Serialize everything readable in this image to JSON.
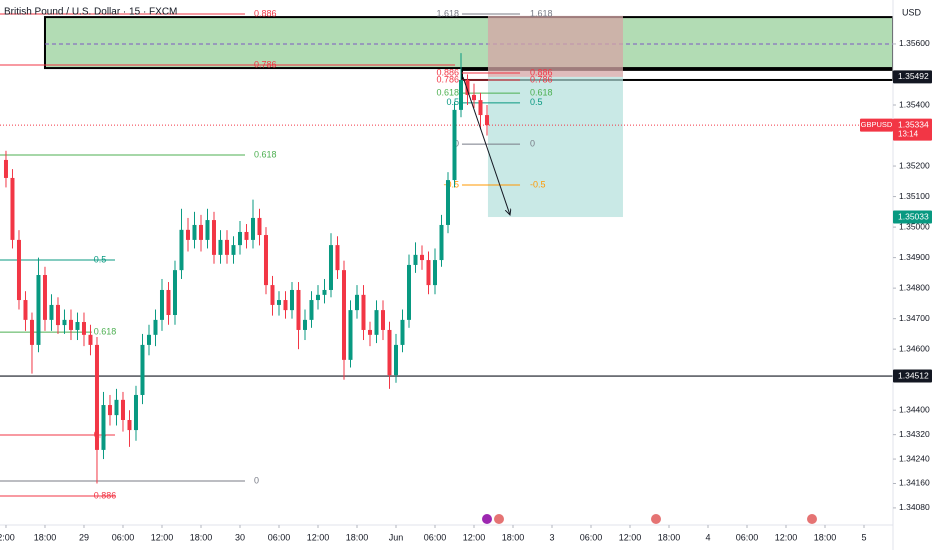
{
  "chart_data": {
    "type": "candlestick",
    "title": "British Pound / U.S. Dollar · 15 · FXCM",
    "currency": "USD",
    "up_color": "#089981",
    "down_color": "#f23645",
    "x": [
      12,
      13,
      14,
      15,
      16,
      17,
      18,
      19,
      20,
      21,
      22,
      23,
      24,
      25,
      26,
      27,
      28,
      29,
      30,
      31,
      32,
      33,
      34,
      35,
      36,
      37,
      38,
      39,
      40,
      41,
      42,
      43,
      44,
      45,
      46,
      47,
      48,
      49,
      50,
      51,
      52,
      53,
      54,
      55,
      56,
      57,
      58,
      59,
      60,
      61,
      62,
      63,
      64,
      65,
      66,
      67,
      68,
      69,
      70,
      71,
      72,
      73,
      74,
      75,
      76,
      77,
      78,
      79,
      80,
      81,
      82,
      83,
      84,
      85,
      86
    ],
    "open": [
      1.3522,
      1.35161,
      1.34958,
      1.34761,
      1.34696,
      1.34614,
      1.34843,
      1.34696,
      1.34745,
      1.34679,
      1.34696,
      1.34663,
      1.34689,
      1.34647,
      1.34614,
      1.3427,
      1.34417,
      1.34384,
      1.34434,
      1.34368,
      1.34335,
      1.3445,
      1.34614,
      1.34647,
      1.34696,
      1.34794,
      1.34712,
      1.34859,
      1.34991,
      1.34958,
      1.35007,
      1.34958,
      1.35023,
      1.34909,
      1.34958,
      1.34909,
      1.34941,
      1.34984,
      1.34958,
      1.3503,
      1.34974,
      1.3481,
      1.34745,
      1.34761,
      1.34728,
      1.34794,
      1.34663,
      1.34696,
      1.34761,
      1.34778,
      1.34794,
      1.34941,
      1.34859,
      1.34565,
      1.34728,
      1.34778,
      1.34663,
      1.34647,
      1.34728,
      1.34663,
      1.34515,
      1.34614,
      1.34696,
      1.34876,
      1.34909,
      1.34892,
      1.3481,
      1.34892,
      1.35007,
      1.35154,
      1.35384,
      1.35482,
      1.35433,
      1.35416,
      1.35367
    ],
    "high": [
      1.3525,
      1.3519,
      1.3499,
      1.3479,
      1.3472,
      1.349,
      1.3487,
      1.3478,
      1.3477,
      1.3473,
      1.3473,
      1.3472,
      1.3472,
      1.3468,
      1.3464,
      1.3446,
      1.3445,
      1.3447,
      1.3446,
      1.344,
      1.3448,
      1.3465,
      1.3468,
      1.3473,
      1.3483,
      1.3482,
      1.3489,
      1.3506,
      1.3503,
      1.3505,
      1.3504,
      1.3506,
      1.3505,
      1.3499,
      1.3499,
      1.3497,
      1.3502,
      1.3501,
      1.3509,
      1.3506,
      1.35,
      1.3484,
      1.3479,
      1.3479,
      1.3482,
      1.3482,
      1.3473,
      1.3479,
      1.3481,
      1.3483,
      1.3498,
      1.3497,
      1.3489,
      1.3476,
      1.3481,
      1.3481,
      1.3469,
      1.3476,
      1.3476,
      1.3469,
      1.3465,
      1.3473,
      1.3491,
      1.3495,
      1.3494,
      1.3492,
      1.3493,
      1.3504,
      1.3518,
      1.3541,
      1.3557,
      1.355,
      1.3547,
      1.3544,
      1.354
    ],
    "low": [
      1.3513,
      1.3493,
      1.3473,
      1.3466,
      1.3452,
      1.3459,
      1.3466,
      1.3466,
      1.3465,
      1.3465,
      1.3463,
      1.3463,
      1.3461,
      1.3458,
      1.3416,
      1.3424,
      1.3435,
      1.3435,
      1.3433,
      1.3428,
      1.343,
      1.3442,
      1.3458,
      1.3461,
      1.3466,
      1.3468,
      1.3468,
      1.3483,
      1.3492,
      1.3493,
      1.3492,
      1.3493,
      1.3488,
      1.3488,
      1.3488,
      1.3488,
      1.3491,
      1.3493,
      1.3493,
      1.3494,
      1.3478,
      1.3471,
      1.3471,
      1.347,
      1.347,
      1.346,
      1.3463,
      1.3467,
      1.3473,
      1.3475,
      1.3477,
      1.3483,
      1.345,
      1.3454,
      1.347,
      1.3463,
      1.3461,
      1.3462,
      1.3463,
      1.3447,
      1.3449,
      1.3459,
      1.3467,
      1.3485,
      1.3486,
      1.3478,
      1.3478,
      1.3487,
      1.3498,
      1.3513,
      1.3536,
      1.354,
      1.3539,
      1.3532,
      1.353
    ],
    "close": [
      1.35161,
      1.34958,
      1.34761,
      1.34696,
      1.34614,
      1.34843,
      1.34696,
      1.34745,
      1.34679,
      1.34696,
      1.34663,
      1.34689,
      1.34647,
      1.34614,
      1.3427,
      1.34417,
      1.34384,
      1.34434,
      1.34368,
      1.34335,
      1.3445,
      1.34614,
      1.34647,
      1.34696,
      1.34794,
      1.34712,
      1.34859,
      1.34991,
      1.34958,
      1.35007,
      1.34958,
      1.35023,
      1.34909,
      1.34958,
      1.34909,
      1.34941,
      1.34984,
      1.34958,
      1.3503,
      1.34974,
      1.3481,
      1.34745,
      1.34761,
      1.34728,
      1.34794,
      1.34663,
      1.34696,
      1.34761,
      1.34778,
      1.34794,
      1.34941,
      1.34859,
      1.34565,
      1.34728,
      1.34778,
      1.34663,
      1.34647,
      1.34728,
      1.34663,
      1.34515,
      1.34614,
      1.34696,
      1.34876,
      1.34909,
      1.34892,
      1.3481,
      1.34892,
      1.35007,
      1.35154,
      1.35384,
      1.35482,
      1.35433,
      1.35416,
      1.35367,
      1.35334
    ],
    "xlim": [
      11.08,
      148.46
    ],
    "xticks": [
      {
        "value": 12,
        "label": "2:00"
      },
      {
        "value": 18,
        "label": "18:00"
      },
      {
        "value": 24,
        "label": "29"
      },
      {
        "value": 30,
        "label": "06:00"
      },
      {
        "value": 36,
        "label": "12:00"
      },
      {
        "value": 42,
        "label": "18:00"
      },
      {
        "value": 48,
        "label": "30"
      },
      {
        "value": 54,
        "label": "06:00"
      },
      {
        "value": 60,
        "label": "12:00"
      },
      {
        "value": 66,
        "label": "18:00"
      },
      {
        "value": 72,
        "label": "Jun"
      },
      {
        "value": 78,
        "label": "06:00"
      },
      {
        "value": 84,
        "label": "12:00"
      },
      {
        "value": 90,
        "label": "18:00"
      },
      {
        "value": 96,
        "label": "3"
      },
      {
        "value": 102,
        "label": "06:00"
      },
      {
        "value": 108,
        "label": "12:00"
      },
      {
        "value": 114,
        "label": "18:00"
      },
      {
        "value": 120,
        "label": "4"
      },
      {
        "value": 126,
        "label": "06:00"
      },
      {
        "value": 132,
        "label": "12:00"
      },
      {
        "value": 138,
        "label": "18:00"
      },
      {
        "value": 144,
        "label": "5"
      }
    ],
    "ylim": [
      1.34024,
      1.35744
    ],
    "yticks": [
      {
        "value": 1.356,
        "label": "1.35600"
      },
      {
        "value": 1.354,
        "label": "1.35400"
      },
      {
        "value": 1.352,
        "label": "1.35200"
      },
      {
        "value": 1.351,
        "label": "1.35100"
      },
      {
        "value": 1.35,
        "label": "1.35000"
      },
      {
        "value": 1.349,
        "label": "1.34900"
      },
      {
        "value": 1.348,
        "label": "1.34800"
      },
      {
        "value": 1.347,
        "label": "1.34700"
      },
      {
        "value": 1.346,
        "label": "1.34600"
      },
      {
        "value": 1.344,
        "label": "1.34400"
      },
      {
        "value": 1.3432,
        "label": "1.34320"
      },
      {
        "value": 1.3424,
        "label": "1.34240"
      },
      {
        "value": 1.3416,
        "label": "1.34160"
      },
      {
        "value": 1.3408,
        "label": "1.34080"
      }
    ],
    "zones": [
      {
        "top": 1.35688,
        "bottom": 1.35521,
        "from": 18,
        "to": 148.46,
        "fill": "#a5d6a7",
        "midline": 1.356
      },
      {
        "top": 1.35515,
        "bottom": 1.35482,
        "from": 82.15,
        "to": 148.46,
        "fill": "#ffffff"
      }
    ],
    "position": {
      "from": 86.15,
      "to": 106.92,
      "entry": 1.35492,
      "stop": 1.35692,
      "target": 1.35033
    },
    "arrow": {
      "x0": 82.3,
      "y0": 1.35492,
      "x1": 89.54,
      "y1": 1.3504
    },
    "fib_sets": [
      {
        "from": 11.08,
        "levels": [
          {
            "price": 1.35698,
            "label": "0.886",
            "color": "#f23645",
            "to": 48.77,
            "label_at": 49.85
          },
          {
            "price": 1.35531,
            "label": "0.786",
            "color": "#f23645",
            "to": 81.08,
            "label_at": 49.85
          },
          {
            "price": 1.35236,
            "label": "0.618",
            "color": "#4caf50",
            "to": 48.77,
            "label_at": 49.85
          },
          {
            "price": 1.34892,
            "label": "0.5",
            "color": "#089981",
            "to": 28.77,
            "label_at": 25.2
          },
          {
            "price": 1.34656,
            "label": "0.618",
            "color": "#4caf50",
            "to": 25.2,
            "label_at": 25.2
          },
          {
            "price": 1.34319,
            "label": "0.5",
            "color": "#f23645",
            "to": 28.77,
            "label_at": 25.2
          },
          {
            "price": 1.34168,
            "label": "0",
            "color": "#787b86",
            "to": 48.77,
            "label_at": 49.85
          },
          {
            "price": 1.34119,
            "label": "0.886",
            "color": "#f23645",
            "to": 28.77,
            "label_at": 25.2
          }
        ]
      },
      {
        "from": 82.15,
        "levels": [
          {
            "price": 1.35698,
            "label": "1.618",
            "color": "#787b86",
            "to": 91.08
          },
          {
            "price": 1.35505,
            "label": "0.886",
            "color": "#f23645",
            "to": 91.08
          },
          {
            "price": 1.35482,
            "label": "0.786",
            "color": "#f23645",
            "to": 91.08
          },
          {
            "price": 1.35439,
            "label": "0.618",
            "color": "#4caf50",
            "to": 91.08
          },
          {
            "price": 1.35407,
            "label": "0.5",
            "color": "#089981",
            "to": 91.08
          },
          {
            "price": 1.35272,
            "label": "0",
            "color": "#787b86",
            "to": 91.08
          },
          {
            "price": 1.35138,
            "label": "-0.5",
            "color": "#ff9800",
            "to": 91.08
          }
        ]
      }
    ],
    "price_labels": [
      {
        "value": 1.35492,
        "label": "1.35492",
        "color": "#131722"
      },
      {
        "value": 1.35334,
        "label": "1.35334",
        "color": "#f23645",
        "symbol": "GBPUSD",
        "countdown": "13:14",
        "line": "dotted"
      },
      {
        "value": 1.35033,
        "label": "1.35033",
        "color": "#089981"
      },
      {
        "value": 1.34512,
        "label": "1.34512",
        "color": "#131722",
        "line": "solid"
      }
    ]
  }
}
